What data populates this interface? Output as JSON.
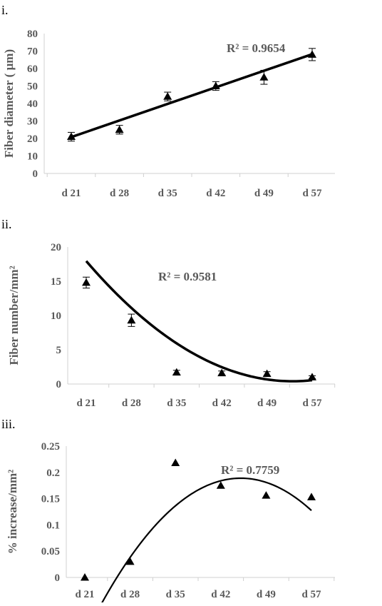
{
  "chart_data": [
    {
      "panel": "i.",
      "type": "scatter",
      "categories": [
        "d 21",
        "d 28",
        "d 35",
        "d 42",
        "d 49",
        "d 57"
      ],
      "values": [
        21,
        25,
        44,
        50,
        55,
        68
      ],
      "error": [
        2.5,
        2.5,
        2.5,
        2.5,
        4,
        3.5
      ],
      "ylabel": "Fiber diameter ( µm)",
      "xlabel": "",
      "ylim": [
        0,
        80
      ],
      "yticks": [
        0,
        10,
        20,
        30,
        40,
        50,
        60,
        70,
        80
      ],
      "trendline": {
        "kind": "linear",
        "from": 20.8,
        "to": 68.2
      },
      "r_squared": "R² = 0.9654",
      "grid": false,
      "marker": "triangle"
    },
    {
      "panel": "ii.",
      "type": "scatter",
      "categories": [
        "d 21",
        "d 28",
        "d 35",
        "d 42",
        "d 49",
        "d 57"
      ],
      "values": [
        14.8,
        9.3,
        1.7,
        1.6,
        1.5,
        1.0
      ],
      "error": [
        0.8,
        0.9,
        0.3,
        0.3,
        0.3,
        0.2
      ],
      "ylabel": "Fiber number/mm²",
      "xlabel": "",
      "ylim": [
        0,
        20
      ],
      "yticks": [
        0,
        5,
        10,
        15,
        20
      ],
      "trendline": {
        "kind": "poly2",
        "coef": [
          0.842,
          -9.37,
          26.47
        ]
      },
      "r_squared": "R² = 0.9581",
      "grid": false,
      "marker": "triangle"
    },
    {
      "panel": "iii.",
      "type": "scatter",
      "categories": [
        "d 21",
        "d 28",
        "d 35",
        "d 42",
        "d 49",
        "d 57"
      ],
      "values": [
        0.0,
        0.03,
        0.218,
        0.175,
        0.156,
        0.153
      ],
      "ylabel": "% increase/mm²",
      "xlabel": "",
      "ylim": [
        0,
        0.25
      ],
      "yticks": [
        "0",
        "0.05",
        "0.1",
        "0.15",
        "0.2",
        "0.25"
      ],
      "trendline": {
        "kind": "poly2",
        "coef": [
          -0.0253,
          0.2247,
          -0.31
        ]
      },
      "r_squared": "R² = 0.7759",
      "grid": false,
      "marker": "triangle"
    }
  ]
}
